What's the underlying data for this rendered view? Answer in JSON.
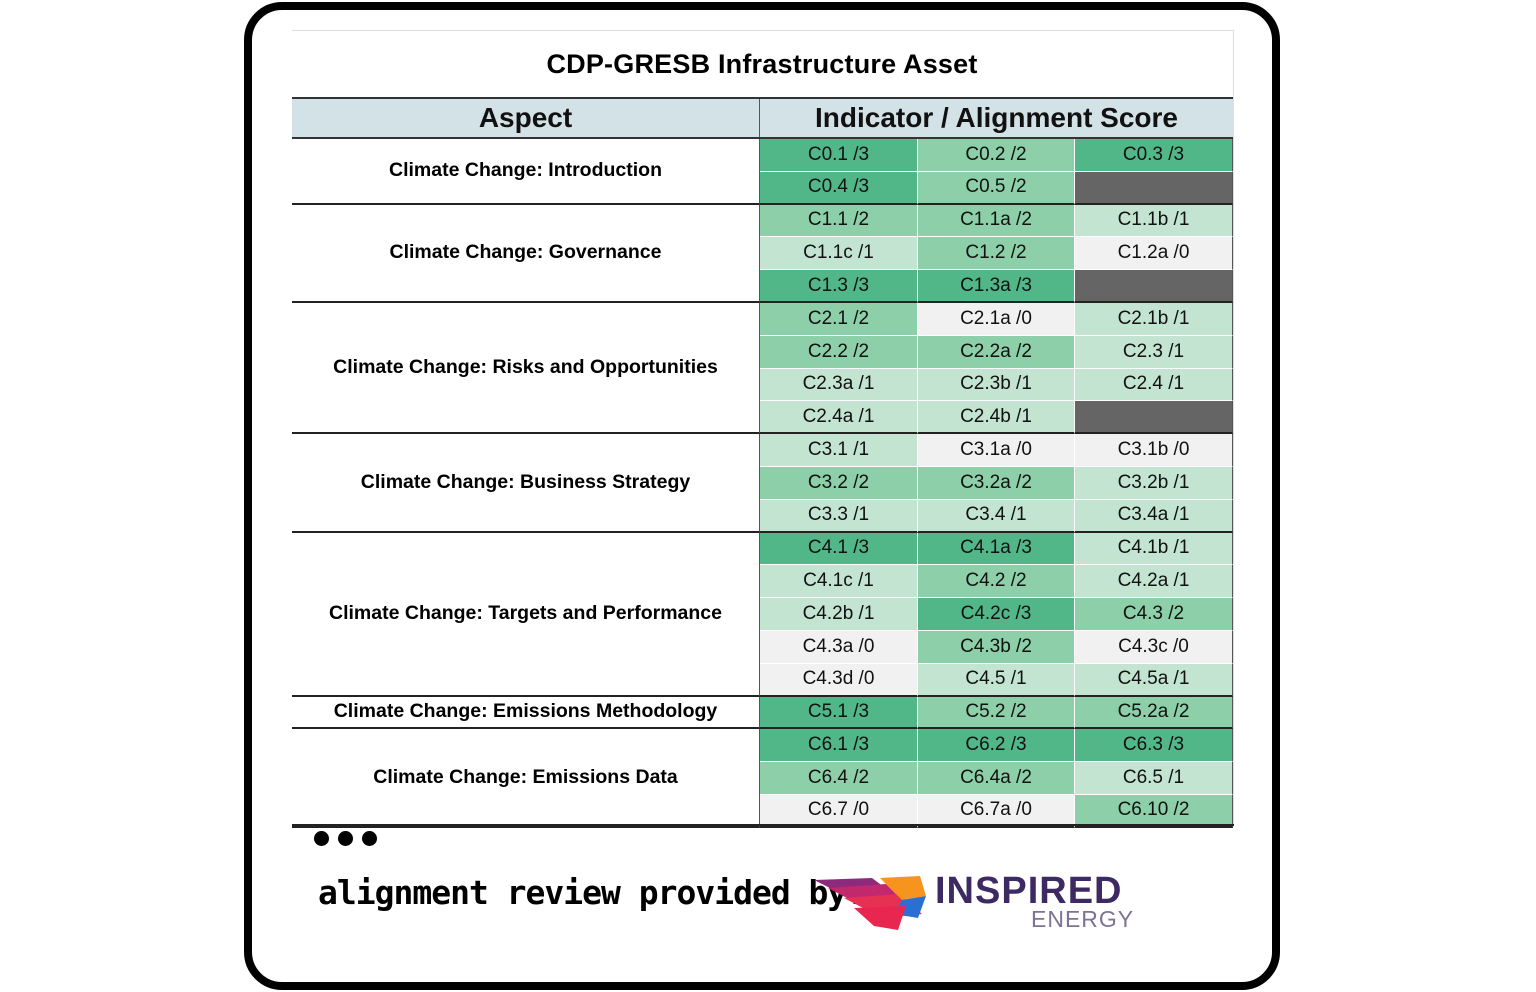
{
  "title": "CDP-GRESB Infrastructure Asset",
  "headers": {
    "aspect": "Aspect",
    "indicator": "Indicator / Alignment Score"
  },
  "colors": {
    "score_3": "#52b788",
    "score_2": "#8ccfa8",
    "score_1": "#c2e4d1",
    "score_0": "#f1f1f1",
    "empty": "#656565"
  },
  "sections": [
    {
      "aspect": "Climate Change: Introduction",
      "cells": [
        [
          "C0.1 /3",
          3
        ],
        [
          "C0.2 /2",
          2
        ],
        [
          "C0.3 /3",
          3
        ],
        [
          "C0.4 /3",
          3
        ],
        [
          "C0.5 /2",
          2
        ],
        [
          "",
          null
        ]
      ]
    },
    {
      "aspect": "Climate Change: Governance",
      "cells": [
        [
          "C1.1 /2",
          2
        ],
        [
          "C1.1a /2",
          2
        ],
        [
          "C1.1b /1",
          1
        ],
        [
          "C1.1c /1",
          1
        ],
        [
          "C1.2 /2",
          2
        ],
        [
          "C1.2a /0",
          0
        ],
        [
          "C1.3 /3",
          3
        ],
        [
          "C1.3a /3",
          3
        ],
        [
          "",
          null
        ]
      ]
    },
    {
      "aspect": "Climate Change: Risks and Opportunities",
      "cells": [
        [
          "C2.1 /2",
          2
        ],
        [
          "C2.1a /0",
          0
        ],
        [
          "C2.1b /1",
          1
        ],
        [
          "C2.2 /2",
          2
        ],
        [
          "C2.2a /2",
          2
        ],
        [
          "C2.3 /1",
          1
        ],
        [
          "C2.3a /1",
          1
        ],
        [
          "C2.3b /1",
          1
        ],
        [
          "C2.4 /1",
          1
        ],
        [
          "C2.4a /1",
          1
        ],
        [
          "C2.4b /1",
          1
        ],
        [
          "",
          null
        ]
      ]
    },
    {
      "aspect": "Climate Change: Business Strategy",
      "cells": [
        [
          "C3.1 /1",
          1
        ],
        [
          "C3.1a /0",
          0
        ],
        [
          "C3.1b /0",
          0
        ],
        [
          "C3.2 /2",
          2
        ],
        [
          "C3.2a /2",
          2
        ],
        [
          "C3.2b /1",
          1
        ],
        [
          "C3.3 /1",
          1
        ],
        [
          "C3.4 /1",
          1
        ],
        [
          "C3.4a /1",
          1
        ]
      ]
    },
    {
      "aspect": "Climate Change:  Targets and Performance",
      "cells": [
        [
          "C4.1 /3",
          3
        ],
        [
          "C4.1a /3",
          3
        ],
        [
          "C4.1b /1",
          1
        ],
        [
          "C4.1c /1",
          1
        ],
        [
          "C4.2 /2",
          2
        ],
        [
          "C4.2a /1",
          1
        ],
        [
          "C4.2b /1",
          1
        ],
        [
          "C4.2c /3",
          3
        ],
        [
          "C4.3 /2",
          2
        ],
        [
          "C4.3a /0",
          0
        ],
        [
          "C4.3b /2",
          2
        ],
        [
          "C4.3c /0",
          0
        ],
        [
          "C4.3d /0",
          0
        ],
        [
          "C4.5 /1",
          1
        ],
        [
          "C4.5a /1",
          1
        ]
      ]
    },
    {
      "aspect": "Climate Change: Emissions Methodology",
      "cells": [
        [
          "C5.1 /3",
          3
        ],
        [
          "C5.2 /2",
          2
        ],
        [
          "C5.2a /2",
          2
        ]
      ]
    },
    {
      "aspect": "Climate Change: Emissions Data",
      "cells": [
        [
          "C6.1 /3",
          3
        ],
        [
          "C6.2 /3",
          3
        ],
        [
          "C6.3 /3",
          3
        ],
        [
          "C6.4 /2",
          2
        ],
        [
          "C6.4a /2",
          2
        ],
        [
          "C6.5 /1",
          1
        ],
        [
          "C6.7 /0",
          0
        ],
        [
          "C6.7a /0",
          0
        ],
        [
          "C6.10 /2",
          2
        ]
      ]
    }
  ],
  "footer": {
    "more_icon": "ellipsis-icon",
    "review_text": "alignment review provided by:",
    "logo_word": "INSPIRED",
    "logo_sub": "ENERGY"
  }
}
